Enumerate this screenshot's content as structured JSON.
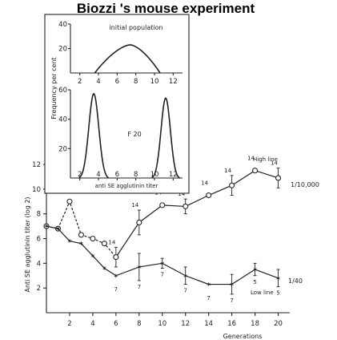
{
  "title": "Biozzi 's mouse experiment",
  "chart_data": [
    {
      "type": "line",
      "xlabel": "Generations",
      "ylabel": "Anti SE agglutinin titer (log 2)",
      "xlim": [
        0,
        21
      ],
      "ylim": [
        0,
        12
      ],
      "x_ticks": [
        2,
        4,
        6,
        8,
        10,
        12,
        14,
        16,
        18,
        20
      ],
      "y_ticks": [
        2,
        4,
        6,
        8,
        10,
        12
      ],
      "grid": false,
      "series": [
        {
          "name": "High line",
          "end_label": "1/10,000",
          "marker": "open-circle",
          "points": [
            {
              "x": 0,
              "y": 7.0,
              "n": ""
            },
            {
              "x": 1,
              "y": 6.8,
              "n": ""
            },
            {
              "x": 2,
              "y": 9.0,
              "n": ""
            },
            {
              "x": 3,
              "y": 6.3,
              "n": ""
            },
            {
              "x": 4,
              "y": 6.0,
              "n": ""
            },
            {
              "x": 5,
              "y": 5.6,
              "n": ""
            },
            {
              "x": 6,
              "y": 4.5,
              "n": "14"
            },
            {
              "x": 8,
              "y": 7.3,
              "n": "14"
            },
            {
              "x": 10,
              "y": 8.7,
              "n": "14"
            },
            {
              "x": 12,
              "y": 8.6,
              "n": "14"
            },
            {
              "x": 14,
              "y": 9.5,
              "n": "14"
            },
            {
              "x": 16,
              "y": 10.3,
              "n": "14"
            },
            {
              "x": 18,
              "y": 11.5,
              "n": "14"
            },
            {
              "x": 20,
              "y": 10.9,
              "n": "14"
            }
          ],
          "err": [
            0,
            0,
            0,
            0,
            0,
            0,
            0.8,
            1.0,
            0,
            0.6,
            0,
            0.8,
            0,
            0.8
          ]
        },
        {
          "name": "Low line",
          "end_label": "1/40",
          "marker": "star",
          "points": [
            {
              "x": 0,
              "y": 7.0,
              "n": ""
            },
            {
              "x": 1,
              "y": 6.8,
              "n": ""
            },
            {
              "x": 2,
              "y": 5.8,
              "n": ""
            },
            {
              "x": 3,
              "y": 5.6,
              "n": ""
            },
            {
              "x": 4,
              "y": 4.6,
              "n": ""
            },
            {
              "x": 5,
              "y": 3.6,
              "n": ""
            },
            {
              "x": 6,
              "y": 3.0,
              "n": "7"
            },
            {
              "x": 8,
              "y": 3.7,
              "n": "7"
            },
            {
              "x": 10,
              "y": 4.0,
              "n": "7"
            },
            {
              "x": 12,
              "y": 3.0,
              "n": "7"
            },
            {
              "x": 14,
              "y": 2.3,
              "n": "7"
            },
            {
              "x": 16,
              "y": 2.3,
              "n": "7"
            },
            {
              "x": 18,
              "y": 3.5,
              "n": "5"
            },
            {
              "x": 20,
              "y": 2.8,
              "n": "5"
            }
          ],
          "err": [
            0,
            0,
            0,
            0,
            0,
            0,
            0,
            1.1,
            0.4,
            0.7,
            0,
            0.8,
            0.5,
            0.7
          ]
        }
      ]
    },
    {
      "type": "area",
      "title": "initial population",
      "ylabel": "Frequency per cent",
      "xlim": [
        1,
        13
      ],
      "ylim": [
        0,
        40
      ],
      "x_ticks": [
        2,
        4,
        6,
        8,
        10,
        12
      ],
      "y_ticks": [
        20,
        40
      ],
      "x": [
        3.6,
        7.4,
        10.6
      ],
      "values": [
        0,
        23,
        0
      ]
    },
    {
      "type": "area",
      "title": "F 20",
      "xlabel": "anti SE agglutinin titer",
      "xlim": [
        1,
        13
      ],
      "ylim": [
        0,
        60
      ],
      "x_ticks": [
        2,
        4,
        6,
        8,
        10,
        12
      ],
      "y_ticks": [
        20,
        40,
        60
      ],
      "series": [
        {
          "center": 3.5,
          "peak": 58,
          "halfwidth": 1.6
        },
        {
          "center": 11.2,
          "peak": 55,
          "halfwidth": 1.5
        }
      ]
    }
  ]
}
